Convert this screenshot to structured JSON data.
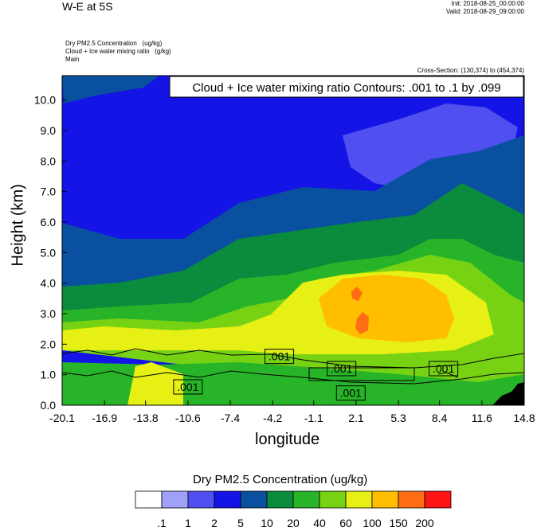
{
  "header": {
    "title": "W-E at 5S",
    "init": "Init: 2018-08-25_00:00:00",
    "valid": "Valid: 2018-08-29_09:00:00",
    "field1": "Dry PM2.5 Concentration   (ug/kg)",
    "field2": "Cloud + Ice water mixing ratio   (g/kg)",
    "field3": "Main",
    "cross_section": "Cross-Section: (130,374) to (454,374)"
  },
  "chart_data": {
    "type": "heatmap",
    "title": "Cloud + Ice water mixing ratio Contours: .001 to .1 by .099",
    "xlabel": "longitude",
    "ylabel": "Height (km)",
    "xlim": [
      -20.1,
      14.8
    ],
    "ylim": [
      0.0,
      10.8
    ],
    "x_ticks": [
      "-20.1",
      "-16.9",
      "-13.8",
      "-10.6",
      "-7.4",
      "-4.2",
      "-1.1",
      "2.1",
      "5.3",
      "8.4",
      "11.6",
      "14.8"
    ],
    "y_ticks": [
      "0.0",
      "1.0",
      "2.0",
      "3.0",
      "4.0",
      "5.0",
      "6.0",
      "7.0",
      "8.0",
      "9.0",
      "10.0"
    ],
    "contour_labels": [
      {
        "text": ".001",
        "x": -10.6,
        "y": 0.6
      },
      {
        "text": ".001",
        "x": -3.7,
        "y": 1.6
      },
      {
        "text": ".001",
        "x": 1.0,
        "y": 1.2
      },
      {
        "text": ".001",
        "x": 1.7,
        "y": 0.4
      },
      {
        "text": ".001",
        "x": 8.7,
        "y": 1.2
      }
    ],
    "colorbar": {
      "title": "Dry PM2.5 Concentration  (ug/kg)",
      "levels": [
        ".1",
        "1",
        "2",
        "5",
        "10",
        "20",
        "40",
        "60",
        "100",
        "150",
        "200"
      ],
      "colors": [
        "#ffffff",
        "#a0a0f8",
        "#5050f0",
        "#1414e6",
        "#0a50a0",
        "#0a8c3c",
        "#28b428",
        "#78d214",
        "#e6f014",
        "#ffbe00",
        "#ff6e14",
        "#ff1414"
      ]
    }
  }
}
